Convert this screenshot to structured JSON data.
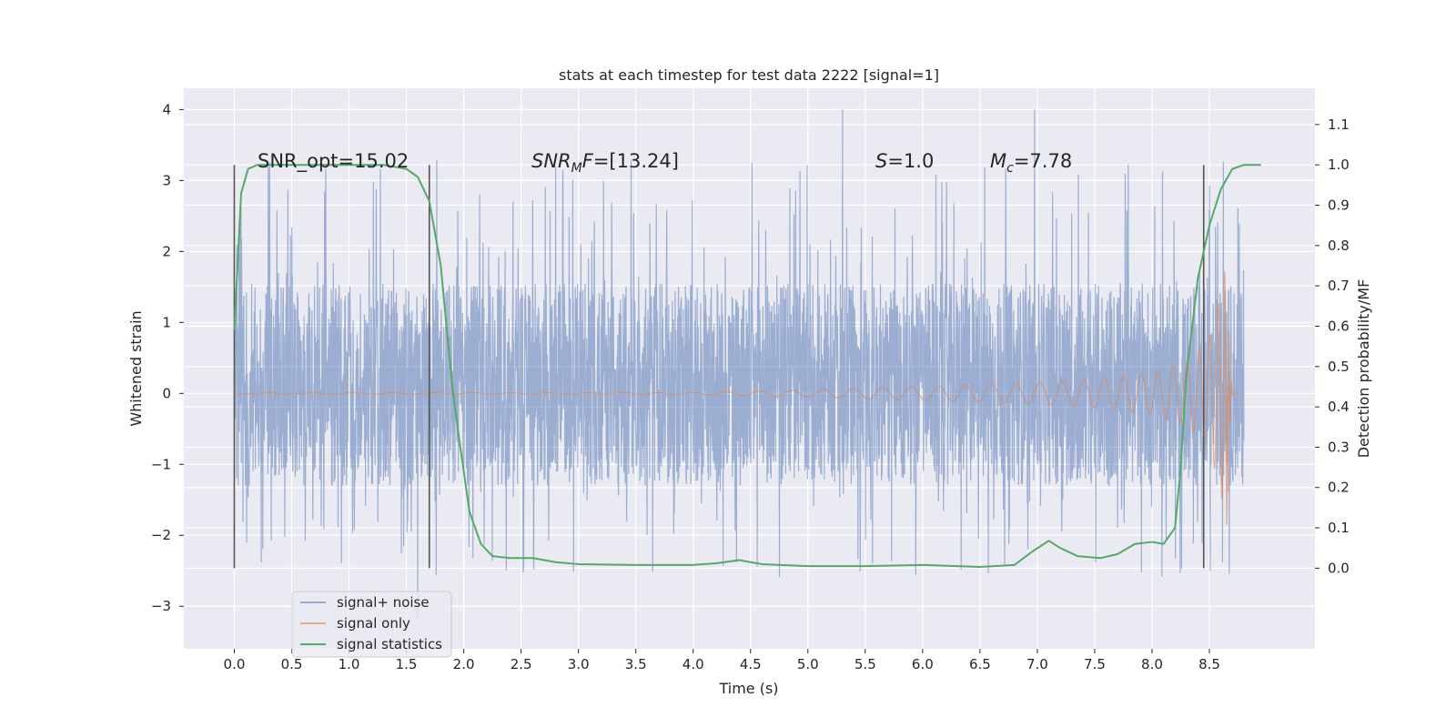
{
  "chart_data": {
    "type": "line",
    "title": "stats at each timestep for test data 2222 [signal=1]",
    "xlabel": "Time (s)",
    "ylabel": "Whitened strain",
    "ylabel_right": "Detection probability/MF",
    "xlim": [
      -0.44,
      9.42
    ],
    "ylim": [
      -3.6,
      4.3
    ],
    "ylim_right": [
      -0.2,
      1.19
    ],
    "xticks": [
      "0.0",
      "0.5",
      "1.0",
      "1.5",
      "2.0",
      "2.5",
      "3.0",
      "3.5",
      "4.0",
      "4.5",
      "5.0",
      "5.5",
      "6.0",
      "6.5",
      "7.0",
      "7.5",
      "8.0",
      "8.5"
    ],
    "yticks": [
      "−3",
      "−2",
      "−1",
      "0",
      "1",
      "2",
      "3",
      "4"
    ],
    "yticks_right": [
      "0.0",
      "0.1",
      "0.2",
      "0.3",
      "0.4",
      "0.5",
      "0.6",
      "0.7",
      "0.8",
      "0.9",
      "1.0",
      "1.1"
    ],
    "grid": true,
    "legend_position": "lower-left",
    "series": [
      {
        "name": "signal+ noise",
        "color": "#4c72b0",
        "x_range": [
          0,
          8.8
        ],
        "typical_amplitude": [
          -1.3,
          1.55
        ],
        "peak_amplitude": [
          -3.2,
          4.0
        ]
      },
      {
        "name": "signal only",
        "color": "#dd8452",
        "x_range": [
          0,
          8.8
        ],
        "envelope": {
          "t": [
            0,
            4.0,
            5.0,
            6.0,
            7.0,
            7.5,
            8.0,
            8.3,
            8.5,
            8.6,
            8.65,
            8.7,
            8.8
          ],
          "amp": [
            0.005,
            0.01,
            0.05,
            0.1,
            0.15,
            0.2,
            0.3,
            0.45,
            0.8,
            1.4,
            1.9,
            0.05,
            0.01
          ]
        }
      },
      {
        "name": "signal statistics",
        "color": "#55a868",
        "axis": "right",
        "x": [
          0.0,
          0.06,
          0.12,
          0.2,
          0.3,
          0.5,
          1.0,
          1.3,
          1.5,
          1.6,
          1.7,
          1.8,
          1.9,
          1.97,
          2.05,
          2.15,
          2.25,
          2.4,
          2.6,
          2.8,
          3.0,
          3.5,
          4.0,
          4.2,
          4.4,
          4.6,
          5.0,
          5.5,
          6.0,
          6.5,
          6.8,
          6.95,
          7.1,
          7.2,
          7.35,
          7.55,
          7.7,
          7.85,
          8.0,
          8.1,
          8.2,
          8.25,
          8.3,
          8.4,
          8.5,
          8.6,
          8.7,
          8.8,
          8.95
        ],
        "y": [
          0.59,
          0.93,
          0.99,
          1.0,
          1.0,
          1.0,
          1.0,
          1.0,
          0.99,
          0.97,
          0.91,
          0.75,
          0.45,
          0.3,
          0.14,
          0.06,
          0.03,
          0.025,
          0.025,
          0.015,
          0.01,
          0.008,
          0.008,
          0.012,
          0.02,
          0.01,
          0.005,
          0.005,
          0.008,
          0.003,
          0.008,
          0.04,
          0.068,
          0.05,
          0.03,
          0.025,
          0.035,
          0.06,
          0.065,
          0.06,
          0.1,
          0.25,
          0.48,
          0.72,
          0.85,
          0.94,
          0.99,
          1.0,
          1.0
        ]
      }
    ],
    "vlines": [
      0.0,
      1.7,
      8.45
    ],
    "annotations": {
      "snr_opt": "SNR_opt=15.02",
      "snr_mf_main": "SNR",
      "snr_mf_sub": "M",
      "snr_mf_post": "F",
      "snr_mf_value": "=[13.24]",
      "s_var": "S",
      "s_value": "=1.0",
      "mc_var": "M",
      "mc_sub": "c",
      "mc_value": "=7.78"
    }
  }
}
